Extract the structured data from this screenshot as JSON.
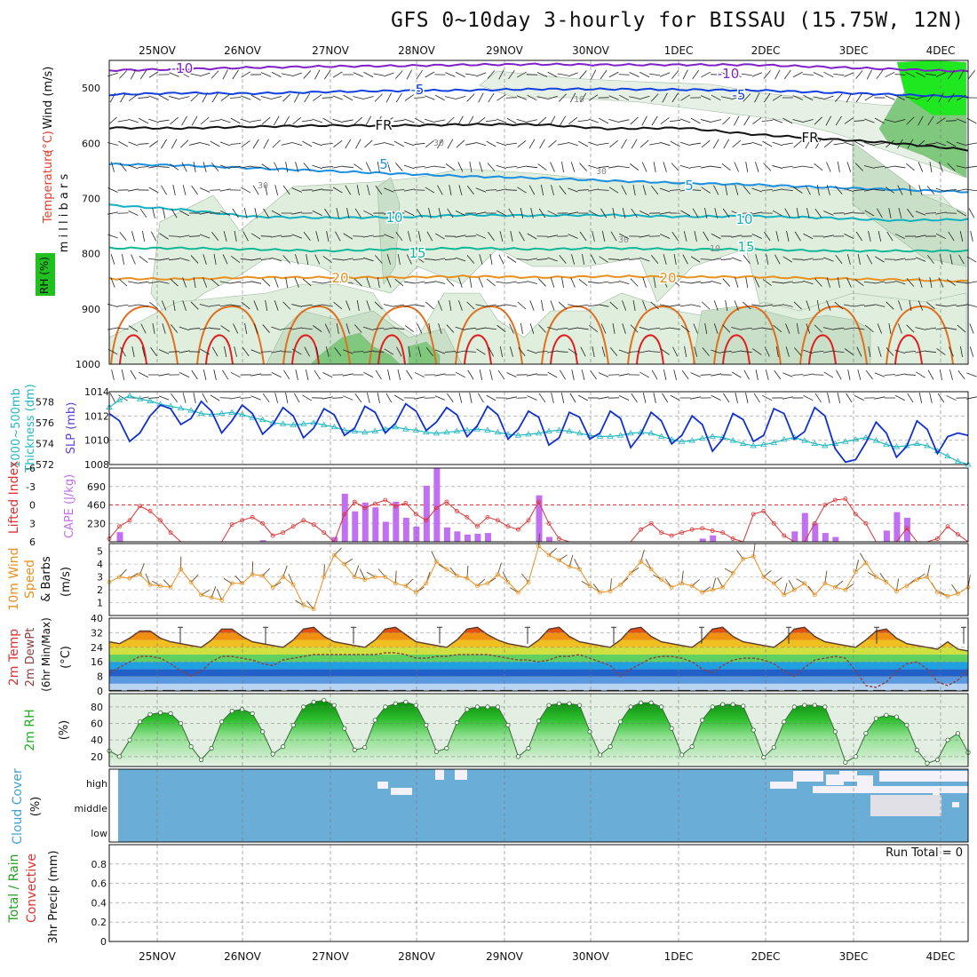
{
  "title": "GFS 0~10day 3-hourly for BISSAU (15.75W, 12N)",
  "date_labels": [
    "25NOV",
    "26NOV",
    "27NOV",
    "28NOV",
    "29NOV",
    "30NOV",
    "1DEC",
    "2DEC",
    "3DEC",
    "4DEC"
  ],
  "colors": {
    "slp": "#1030d0",
    "thickness": "#20b8c0",
    "lifted": "#e03030",
    "cape": "#c070f0",
    "wind": "#e89020",
    "temp": "#e84010",
    "rh": "#20b020",
    "cloud": "#6aaed8"
  },
  "chart_data": [
    {
      "id": "profile",
      "type": "heatmap",
      "ylabel": "millibars",
      "side_labels": [
        "RH (%)",
        "Temperature (°C)",
        "Wind (m/s)"
      ],
      "y_ticks": [
        "500",
        "600",
        "700",
        "800",
        "900",
        "1000"
      ],
      "contour_labels": [
        "-10",
        "-5",
        "FR",
        "5",
        "10",
        "15",
        "20",
        "-10",
        "-5",
        "FR",
        "5",
        "10",
        "15",
        "20"
      ],
      "rh_labels": [
        "30",
        "30",
        "30",
        "10",
        "10",
        "30"
      ],
      "isotherms": [
        {
          "name": "-10",
          "p": [
            468,
            466,
            463,
            461,
            460,
            458,
            457,
            458,
            458,
            458,
            462,
            466,
            470
          ]
        },
        {
          "name": "-5",
          "p": [
            512,
            509,
            510,
            507,
            505,
            504,
            502,
            502,
            503,
            504,
            508,
            512,
            516
          ]
        },
        {
          "name": "FR",
          "p": [
            572,
            573,
            570,
            568,
            568,
            566,
            566,
            574,
            572,
            584,
            592,
            600,
            612
          ]
        },
        {
          "name": "5",
          "p": [
            638,
            640,
            645,
            650,
            655,
            660,
            663,
            668,
            672,
            675,
            680,
            684,
            688
          ]
        },
        {
          "name": "10",
          "p": [
            712,
            720,
            733,
            735,
            734,
            730,
            731,
            730,
            733,
            732,
            735,
            740,
            738
          ]
        },
        {
          "name": "15",
          "p": [
            790,
            790,
            792,
            795,
            792,
            790,
            792,
            790,
            792,
            792,
            795,
            795,
            795
          ]
        },
        {
          "name": "20",
          "p": [
            845,
            846,
            843,
            843,
            843,
            841,
            843,
            841,
            842,
            842,
            845,
            847,
            850
          ]
        }
      ]
    },
    {
      "id": "slp",
      "type": "line",
      "ylabel": "SLP (mb)",
      "ylabel_left": "1000~500mb Thickness (dm)",
      "ylim": [
        1008,
        1014
      ],
      "y_ticks": [
        "1014",
        "1012",
        "1010",
        "1008"
      ],
      "y2lim": [
        572,
        579
      ],
      "y2_ticks": [
        "578",
        "576",
        "574",
        "572"
      ],
      "series": [
        {
          "name": "SLP (mb)",
          "values": [
            1012.2,
            1011.6,
            1009.9,
            1010.6,
            1012.0,
            1012.9,
            1012.6,
            1011.3,
            1011.8,
            1013.2,
            1012.4,
            1010.6,
            1011.6,
            1012.9,
            1012.2,
            1010.5,
            1011.3,
            1012.7,
            1012.0,
            1010.2,
            1011.0,
            1012.6,
            1012.1,
            1010.4,
            1011.0,
            1012.8,
            1012.3,
            1010.6,
            1011.4,
            1013.0,
            1012.4,
            1010.8,
            1011.5,
            1012.7,
            1012.1,
            1010.3,
            1011.2,
            1012.8,
            1012.1,
            1010.1,
            1010.9,
            1012.4,
            1011.9,
            1009.6,
            1010.2,
            1012.3,
            1011.9,
            1010.1,
            1010.6,
            1012.4,
            1011.8,
            1009.4,
            1010.5,
            1012.3,
            1011.6,
            1009.7,
            1010.4,
            1012.0,
            1011.3,
            1009.1,
            1010.1,
            1012.2,
            1011.7,
            1009.9,
            1010.4,
            1012.6,
            1012.2,
            1010.1,
            1010.7,
            1012.7,
            1012.0,
            1009.3,
            1008.2,
            1008.4,
            1009.8,
            1011.5,
            1010.6,
            1008.6,
            1009.5,
            1011.6,
            1010.9,
            1008.9,
            1010.3,
            1010.6,
            1010.4
          ]
        },
        {
          "name": "1000~500mb Thickness (dm)",
          "values": [
            577.5,
            578.2,
            578.6,
            578.3,
            578.1,
            577.8,
            577.6,
            577.4,
            577.2,
            576.9,
            576.8,
            576.9,
            577.0,
            576.8,
            576.5,
            576.3,
            576.0,
            575.9,
            575.8,
            575.9,
            576.0,
            575.8,
            575.6,
            575.3,
            575.2,
            575.1,
            575.2,
            575.4,
            575.6,
            575.4,
            575.3,
            575.1,
            575.0,
            575.1,
            575.2,
            575.3,
            575.4,
            575.3,
            575.1,
            574.9,
            574.8,
            574.9,
            575.0,
            575.2,
            575.3,
            575.2,
            575.0,
            574.8,
            574.7,
            574.7,
            574.8,
            575.0,
            575.1,
            575.0,
            574.7,
            574.4,
            574.2,
            574.3,
            574.5,
            574.7,
            574.6,
            574.3,
            574.0,
            573.8,
            573.9,
            574.1,
            574.4,
            574.6,
            574.3,
            574.0,
            573.8,
            574.0,
            574.2,
            574.4,
            574.6,
            574.3,
            573.9,
            573.7,
            573.8,
            574.0,
            573.8,
            573.3,
            572.8,
            572.3,
            572.0
          ]
        }
      ]
    },
    {
      "id": "cape",
      "type": "bar",
      "ylabel_left": "Lifted Index",
      "ylabel": "CAPE (J/kg)",
      "ylim": [
        0,
        920
      ],
      "y_ticks": [
        "690",
        "460",
        "230"
      ],
      "y2_ticks": [
        "-6",
        "-3",
        "0",
        "3",
        "6"
      ],
      "series": [
        {
          "name": "Lifted Index",
          "values": [
            5.5,
            3.5,
            2.5,
            0.2,
            1.0,
            2.5,
            4.5,
            6,
            6,
            6,
            6,
            6,
            3.2,
            2.5,
            2.0,
            3.0,
            5.0,
            4.5,
            3.5,
            2.5,
            3.2,
            4.5,
            6,
            1.5,
            -0.5,
            0.5,
            -0.2,
            -0.8,
            0.2,
            -0.3,
            1.5,
            2.5,
            0.5,
            -0.5,
            1.0,
            2.0,
            3.5,
            2.0,
            2.5,
            3.5,
            4.0,
            2.5,
            -0.5,
            3.0,
            5.5,
            6,
            6,
            6,
            6,
            6,
            6,
            6,
            4.0,
            3.0,
            4.5,
            5.0,
            4.5,
            4.0,
            3.8,
            4.2,
            4.5,
            5.5,
            6,
            1.5,
            1.0,
            3.0,
            5.0,
            6,
            6,
            3.0,
            0.0,
            -0.8,
            -1.0,
            1.5,
            3.0,
            6,
            6,
            6,
            3.8,
            6,
            6,
            5.5,
            3.5,
            4.8,
            6
          ]
        },
        {
          "name": "CAPE (J/kg)",
          "values": [
            0,
            120,
            0,
            0,
            0,
            0,
            0,
            0,
            0,
            0,
            0,
            0,
            0,
            0,
            0,
            20,
            0,
            0,
            0,
            0,
            0,
            0,
            60,
            600,
            380,
            490,
            430,
            250,
            500,
            300,
            190,
            700,
            960,
            180,
            130,
            90,
            100,
            110,
            0,
            0,
            0,
            0,
            580,
            60,
            0,
            0,
            0,
            0,
            0,
            0,
            0,
            0,
            0,
            0,
            0,
            0,
            0,
            0,
            40,
            80,
            0,
            0,
            0,
            0,
            0,
            0,
            0,
            130,
            360,
            230,
            110,
            60,
            0,
            0,
            0,
            0,
            140,
            370,
            300,
            0,
            0,
            0,
            0,
            0,
            0
          ]
        }
      ]
    },
    {
      "id": "wind10m",
      "type": "line",
      "ylabel": "10m Wind Speed & Barbs (m/s)",
      "ylim": [
        0,
        5.6
      ],
      "y_ticks": [
        "5",
        "4",
        "3",
        "2",
        "1"
      ],
      "series": [
        {
          "name": "10m Wind Speed",
          "values": [
            2.6,
            3.0,
            2.9,
            3.2,
            2.4,
            2.3,
            2.2,
            3.6,
            2.6,
            1.6,
            1.4,
            1.2,
            2.5,
            2.5,
            3.2,
            3.1,
            2.2,
            3.0,
            2.4,
            0.8,
            0.5,
            3.0,
            4.7,
            4.0,
            3.0,
            2.8,
            3.0,
            3.0,
            2.5,
            2.3,
            1.8,
            2.5,
            4.2,
            3.6,
            3.1,
            2.9,
            2.3,
            2.5,
            3.2,
            2.6,
            1.8,
            2.6,
            5.4,
            4.7,
            4.3,
            3.8,
            3.6,
            2.3,
            1.8,
            1.9,
            2.4,
            3.3,
            4.2,
            3.6,
            2.8,
            2.2,
            2.5,
            2.3,
            1.8,
            2.0,
            2.2,
            3.3,
            4.4,
            4.6,
            3.0,
            2.5,
            1.6,
            2.0,
            2.5,
            1.6,
            2.5,
            2.2,
            2.0,
            3.4,
            4.1,
            3.0,
            2.6,
            1.9,
            2.3,
            2.8,
            3.0,
            1.8,
            1.5,
            1.7,
            2.2
          ]
        }
      ]
    },
    {
      "id": "temp2m",
      "type": "area",
      "ylabel": "2m Temp 2m DewPt (6hr Min/Max) (°C)",
      "ylim": [
        0,
        40
      ],
      "y_ticks": [
        "40",
        "32",
        "24",
        "16",
        "8",
        "0"
      ],
      "series": [
        {
          "name": "2m Temp",
          "values": [
            27,
            26,
            29,
            33,
            33,
            29,
            27,
            26,
            25,
            24,
            28,
            34,
            34,
            30,
            27,
            26,
            25,
            24,
            28,
            34,
            35,
            30,
            27,
            26,
            25,
            24,
            28,
            34,
            35,
            31,
            27,
            26,
            25,
            24,
            28,
            34,
            35,
            31,
            28,
            26,
            25,
            24,
            28,
            34,
            35,
            30,
            27,
            26,
            25,
            24,
            28,
            34,
            35,
            30,
            27,
            26,
            25,
            24,
            28,
            34,
            35,
            30,
            27,
            26,
            25,
            24,
            28,
            34,
            35,
            30,
            27,
            26,
            25,
            24,
            28,
            33,
            34,
            29,
            26,
            25,
            24,
            23,
            27,
            23,
            22
          ]
        },
        {
          "name": "2m DewPt",
          "values": [
            10,
            13,
            16,
            19,
            19,
            18,
            15,
            11,
            8,
            11,
            16,
            19,
            19,
            18,
            17,
            15,
            14,
            17,
            18,
            19,
            20,
            20,
            20,
            20,
            20,
            20,
            20,
            21,
            21,
            20,
            18,
            18,
            19,
            19,
            20,
            20,
            20,
            20,
            19,
            18,
            17,
            17,
            16,
            17,
            19,
            19,
            20,
            18,
            16,
            14,
            8,
            12,
            15,
            18,
            19,
            19,
            18,
            16,
            12,
            10,
            14,
            17,
            18,
            18,
            17,
            15,
            11,
            8,
            13,
            17,
            18,
            19,
            18,
            11,
            3,
            2,
            5,
            11,
            15,
            16,
            12,
            5,
            3,
            6,
            12
          ]
        }
      ]
    },
    {
      "id": "rh2m",
      "type": "area",
      "ylabel": "2m RH (%)",
      "ylim": [
        8,
        96
      ],
      "y_ticks": [
        "80",
        "60",
        "40",
        "20"
      ],
      "series": [
        {
          "name": "2m RH",
          "values": [
            27,
            20,
            40,
            62,
            71,
            73,
            72,
            60,
            32,
            16,
            30,
            62,
            75,
            77,
            72,
            50,
            23,
            32,
            58,
            80,
            86,
            88,
            82,
            54,
            28,
            31,
            64,
            80,
            84,
            86,
            82,
            58,
            26,
            30,
            61,
            77,
            80,
            80,
            80,
            58,
            20,
            30,
            63,
            82,
            84,
            84,
            82,
            50,
            22,
            32,
            62,
            80,
            85,
            85,
            80,
            54,
            22,
            32,
            64,
            80,
            83,
            83,
            81,
            52,
            19,
            31,
            62,
            80,
            82,
            82,
            80,
            50,
            13,
            20,
            48,
            66,
            70,
            68,
            58,
            28,
            12,
            16,
            40,
            48,
            25
          ]
        }
      ]
    },
    {
      "id": "cloud",
      "type": "area",
      "ylabel": "Cloud Cover (%)",
      "y_ticks": [
        "high",
        "middle",
        "low"
      ]
    },
    {
      "id": "precip",
      "type": "bar",
      "ylabel": "3hr Precip (mm)",
      "ylabel_left": "Total / Rain Convective",
      "ylim": [
        0,
        1
      ],
      "y_ticks": [
        "0.8",
        "0.6",
        "0.4",
        "0.2",
        "0"
      ],
      "annotation": "Run Total = 0",
      "series": [
        {
          "name": "3hr Precip",
          "values": []
        }
      ]
    }
  ]
}
